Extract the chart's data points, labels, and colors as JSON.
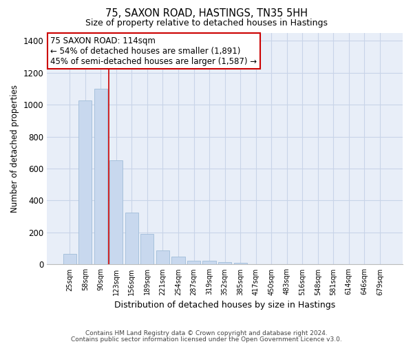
{
  "title1": "75, SAXON ROAD, HASTINGS, TN35 5HH",
  "title2": "Size of property relative to detached houses in Hastings",
  "xlabel": "Distribution of detached houses by size in Hastings",
  "ylabel": "Number of detached properties",
  "categories": [
    "25sqm",
    "58sqm",
    "90sqm",
    "123sqm",
    "156sqm",
    "189sqm",
    "221sqm",
    "254sqm",
    "287sqm",
    "319sqm",
    "352sqm",
    "385sqm",
    "417sqm",
    "450sqm",
    "483sqm",
    "516sqm",
    "548sqm",
    "581sqm",
    "614sqm",
    "646sqm",
    "679sqm"
  ],
  "values": [
    65,
    1025,
    1100,
    650,
    325,
    190,
    90,
    48,
    25,
    22,
    15,
    10,
    0,
    0,
    0,
    0,
    0,
    0,
    0,
    0,
    0
  ],
  "bar_color": "#c8d8ee",
  "bar_edge_color": "#a0bcd8",
  "grid_color": "#c8d4e8",
  "background_color": "#e8eef8",
  "annotation_line1": "75 SAXON ROAD: 114sqm",
  "annotation_line2": "← 54% of detached houses are smaller (1,891)",
  "annotation_line3": "45% of semi-detached houses are larger (1,587) →",
  "red_line_color": "#cc0000",
  "red_line_x": 2.5,
  "ylim": [
    0,
    1450
  ],
  "yticks": [
    0,
    200,
    400,
    600,
    800,
    1000,
    1200,
    1400
  ],
  "footnote1": "Contains HM Land Registry data © Crown copyright and database right 2024.",
  "footnote2": "Contains public sector information licensed under the Open Government Licence v3.0."
}
